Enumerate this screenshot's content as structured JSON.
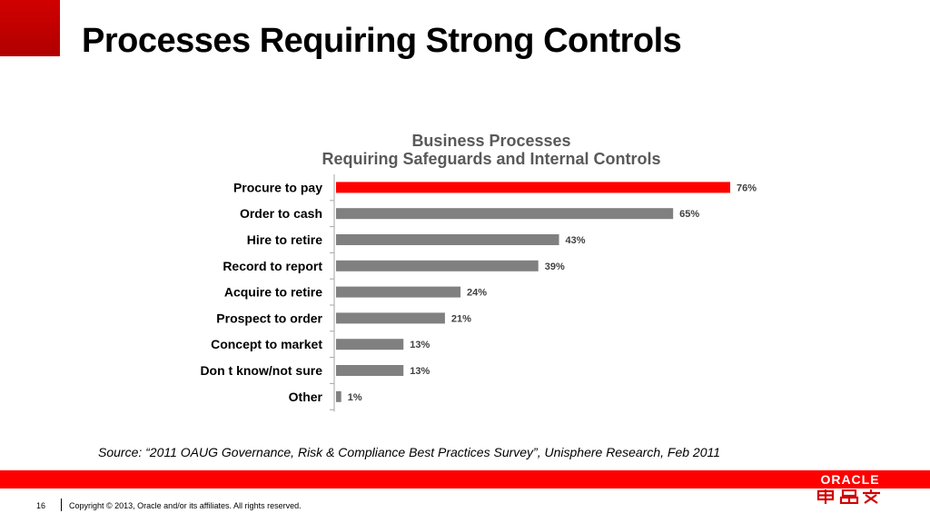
{
  "slide": {
    "title": "Processes Requiring Strong Controls",
    "source": "Source: “2011 OAUG Governance, Risk & Compliance Best Practices Survey”, Unisphere Research, Feb 2011",
    "page_number": "16",
    "copyright": "Copyright © 2013, Oracle and/or its affiliates. All rights reserved.",
    "logo_text": "ORACLE",
    "colors": {
      "accent": "#ff0000",
      "bar": "#808080",
      "highlight": "#ff0000"
    }
  },
  "chart_data": {
    "type": "bar",
    "orientation": "horizontal",
    "title": "Business Processes",
    "subtitle": "Requiring Safeguards and Internal Controls",
    "categories": [
      "Procure to pay",
      "Order to cash",
      "Hire to retire",
      "Record to report",
      "Acquire to retire",
      "Prospect to order",
      "Concept to market",
      "Don t know/not sure",
      "Other"
    ],
    "values": [
      76,
      65,
      43,
      39,
      24,
      21,
      13,
      13,
      1
    ],
    "data_labels": [
      "76%",
      "65%",
      "43%",
      "39%",
      "24%",
      "21%",
      "13%",
      "13%",
      "1%"
    ],
    "unit": "%",
    "highlight_index": 0,
    "xlim": [
      0,
      100
    ],
    "grid": false,
    "legend": "none"
  }
}
